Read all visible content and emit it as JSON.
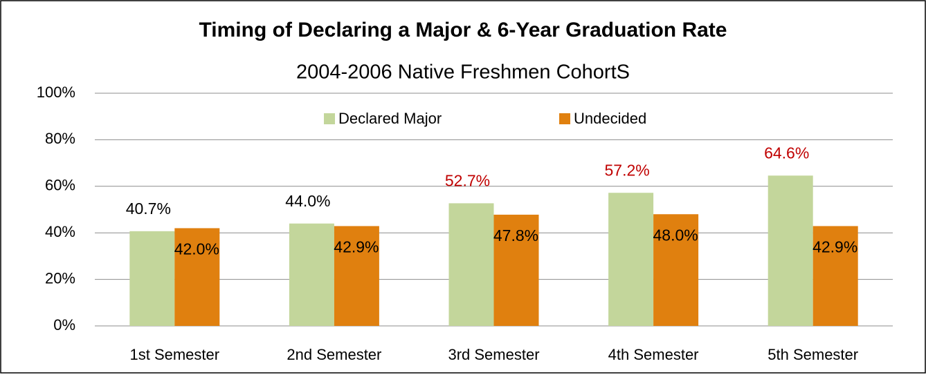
{
  "chart_data": {
    "type": "bar",
    "title": "Timing of Declaring a Major & 6-Year Graduation Rate",
    "subtitle": "2004-2006 Native Freshmen CohortS",
    "categories": [
      "1st Semester",
      "2nd Semester",
      "3rd Semester",
      "4th Semester",
      "5th Semester"
    ],
    "series": [
      {
        "name": "Declared Major",
        "color": "#c3d69b",
        "values": [
          40.7,
          44.0,
          52.7,
          57.2,
          64.6
        ],
        "value_labels": [
          "40.7%",
          "44.0%",
          "52.7%",
          "57.2%",
          "64.6%"
        ],
        "label_colors": [
          "#000000",
          "#000000",
          "#c00000",
          "#c00000",
          "#c00000"
        ]
      },
      {
        "name": "Undecided",
        "color": "#e0800f",
        "values": [
          42.0,
          42.9,
          47.8,
          48.0,
          42.9
        ],
        "value_labels": [
          "42.0%",
          "42.9%",
          "47.8%",
          "48.0%",
          "42.9%"
        ],
        "label_colors": [
          "#000000",
          "#000000",
          "#000000",
          "#000000",
          "#000000"
        ]
      }
    ],
    "ylim": [
      0,
      100
    ],
    "yticks": [
      {
        "value": 0,
        "label": "0%"
      },
      {
        "value": 20,
        "label": "20%"
      },
      {
        "value": 40,
        "label": "40%"
      },
      {
        "value": 60,
        "label": "60%"
      },
      {
        "value": 80,
        "label": "80%"
      },
      {
        "value": 100,
        "label": "100%"
      }
    ],
    "grid": true,
    "legend": "top"
  }
}
